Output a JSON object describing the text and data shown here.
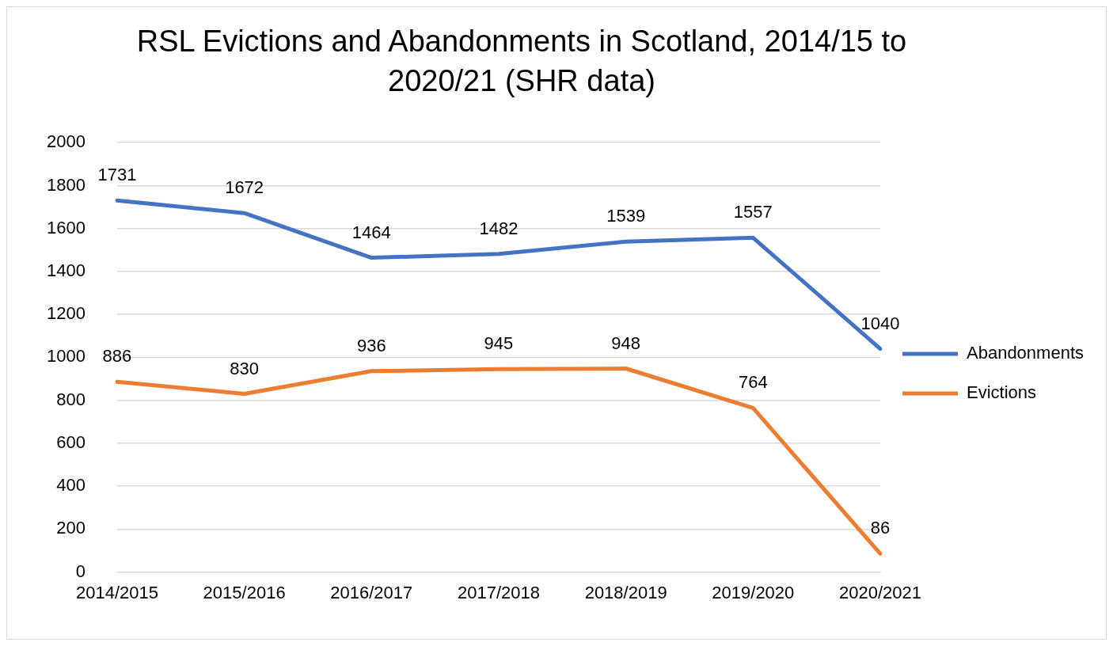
{
  "chart_data": {
    "type": "line",
    "title": "RSL Evictions and Abandonments in Scotland, 2014/15 to 2020/21 (SHR data)",
    "categories": [
      "2014/2015",
      "2015/2016",
      "2016/2017",
      "2017/2018",
      "2018/2019",
      "2019/2020",
      "2020/2021"
    ],
    "series": [
      {
        "name": "Abandonments",
        "color": "#4472c4",
        "values": [
          1731,
          1672,
          1464,
          1482,
          1539,
          1557,
          1040
        ]
      },
      {
        "name": "Evictions",
        "color": "#ed7d31",
        "values": [
          886,
          830,
          936,
          945,
          948,
          764,
          86
        ]
      }
    ],
    "ylim": [
      0,
      2000
    ],
    "yticks": [
      0,
      200,
      400,
      600,
      800,
      1000,
      1200,
      1400,
      1600,
      1800,
      2000
    ],
    "grid": "y",
    "legend": "right",
    "data_labels": true,
    "marker": "none",
    "line_style": "solid"
  }
}
